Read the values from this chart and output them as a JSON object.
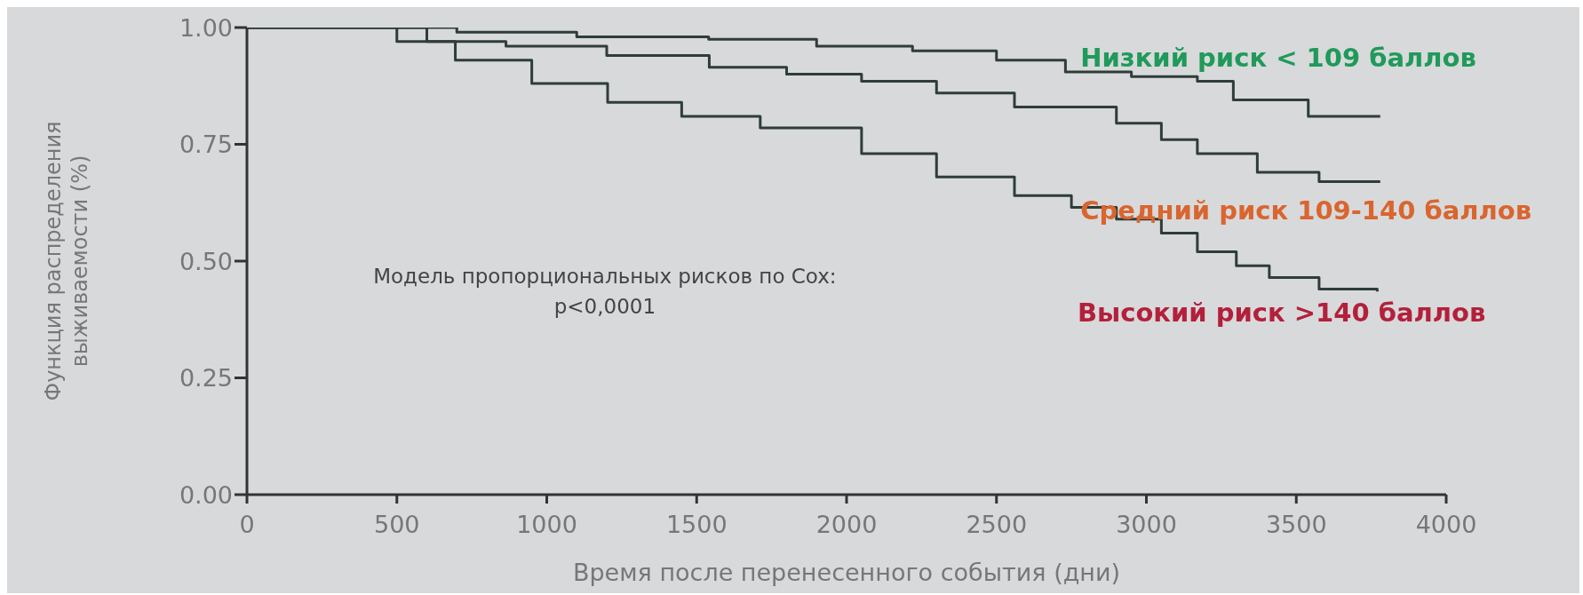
{
  "chart_data": {
    "type": "step",
    "xlabel": "Время после перенесенного события (дни)",
    "ylabel": "Функция распределения выживаемости (%)",
    "annotations": [
      "Модель пропорциональных рисков по Cox:",
      "p<0,0001"
    ],
    "xlim": [
      0,
      4000
    ],
    "xticks": [
      0,
      500,
      1000,
      1500,
      2000,
      2500,
      3000,
      3500,
      4000
    ],
    "ylim": [
      0,
      1
    ],
    "yticks": [
      {
        "value": 0,
        "label": "0.00"
      },
      {
        "value": 0.25,
        "label": "0.25"
      },
      {
        "value": 0.5,
        "label": "0.50"
      },
      {
        "value": 0.75,
        "label": "0.75"
      },
      {
        "value": 1,
        "label": "1.00"
      }
    ],
    "marker": "none",
    "line_style": "solid",
    "series": [
      {
        "name": "Низкий риск < 109 баллов",
        "color": "#2e3d38",
        "x": [
          0,
          300,
          700,
          1100,
          1540,
          1900,
          2220,
          2500,
          2730,
          2950,
          3170,
          3290,
          3475,
          3540,
          3780
        ],
        "values": [
          1,
          1,
          0.99,
          0.98,
          0.975,
          0.96,
          0.95,
          0.93,
          0.905,
          0.895,
          0.885,
          0.845,
          0.845,
          0.81,
          0.81
        ]
      },
      {
        "name": "Средний риск 109-140 баллов",
        "color": "#2e3d38",
        "x": [
          0,
          300,
          600,
          864,
          1200,
          1542,
          1800,
          2050,
          2300,
          2560,
          2900,
          3050,
          3170,
          3370,
          3576,
          3780
        ],
        "values": [
          1,
          1,
          0.97,
          0.96,
          0.94,
          0.915,
          0.9,
          0.885,
          0.86,
          0.83,
          0.795,
          0.76,
          0.73,
          0.69,
          0.67,
          0.67
        ]
      },
      {
        "name": "Высокий риск >140 баллов",
        "color": "#2e3d38",
        "x": [
          0,
          300,
          500,
          695,
          950,
          1203,
          1450,
          1712,
          2050,
          2300,
          2560,
          2750,
          2900,
          3050,
          3170,
          3300,
          3410,
          3576,
          3770
        ],
        "values": [
          1,
          1,
          0.97,
          0.93,
          0.88,
          0.84,
          0.81,
          0.785,
          0.73,
          0.68,
          0.64,
          0.615,
          0.59,
          0.56,
          0.52,
          0.49,
          0.465,
          0.44,
          0.435
        ]
      }
    ]
  }
}
